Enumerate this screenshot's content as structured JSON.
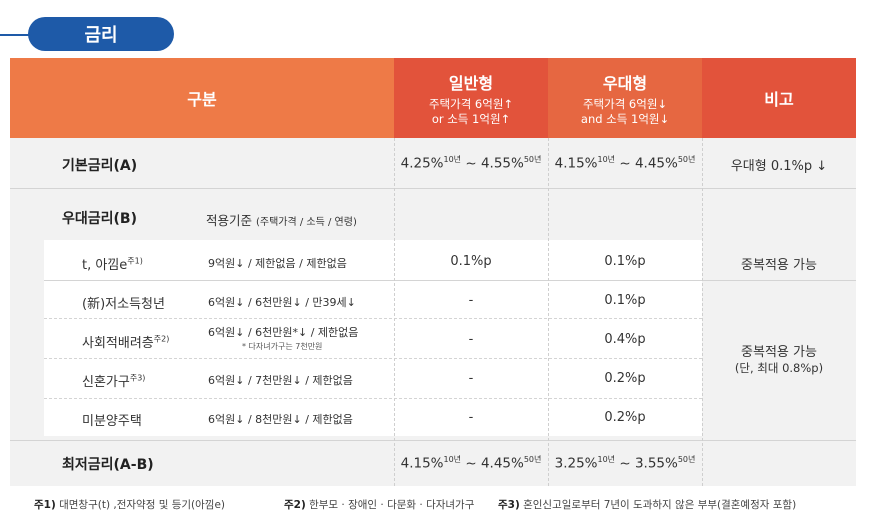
{
  "section_title": "금리",
  "headers": {
    "category": "구분",
    "general": {
      "title": "일반형",
      "line1": "주택가격 6억원↑",
      "line2": "or 소득 1억원↑"
    },
    "preferential": {
      "title": "우대형",
      "line1": "주택가격 6억원↓",
      "line2": "and 소득 1억원↓"
    },
    "remarks": "비고"
  },
  "base_rate": {
    "label": "기본금리(A)",
    "general": {
      "from": "4.25%",
      "from_term": "10년",
      "sep": " ~ ",
      "to": "4.55%",
      "to_term": "50년"
    },
    "preferential": {
      "from": "4.15%",
      "from_term": "10년",
      "sep": " ~ ",
      "to": "4.45%",
      "to_term": "50년"
    },
    "remark": "우대형 0.1%p ↓"
  },
  "discount": {
    "label": "우대금리(B)",
    "criteria_label": "적용기준",
    "criteria_sub": "(주택가격 / 소득 / 연령)",
    "rows": [
      {
        "name": "t, 아낌e",
        "note": "주1)",
        "criteria": "9억원↓ / 제한없음 / 제한없음",
        "criteria2": "",
        "general": "0.1%p",
        "preferential": "0.1%p"
      },
      {
        "name": "(新)저소득청년",
        "note": "",
        "criteria": "6억원↓ / 6천만원↓ / 만39세↓",
        "criteria2": "",
        "general": "-",
        "preferential": "0.1%p"
      },
      {
        "name": "사회적배려층",
        "note": "주2)",
        "criteria": "6억원↓ / 6천만원*↓ / 제한없음",
        "criteria2": "* 다자녀가구는 7천만원",
        "general": "-",
        "preferential": "0.4%p"
      },
      {
        "name": "신혼가구",
        "note": "주3)",
        "criteria": "6억원↓ / 7천만원↓ / 제한없음",
        "criteria2": "",
        "general": "-",
        "preferential": "0.2%p"
      },
      {
        "name": "미분양주택",
        "note": "",
        "criteria": "6억원↓ / 8천만원↓ / 제한없음",
        "criteria2": "",
        "general": "-",
        "preferential": "0.2%p"
      }
    ],
    "remark_dup": "중복적용 가능",
    "remark_dup2": "중복적용 가능",
    "remark_dup2_sub": "(단, 최대 0.8%p)"
  },
  "min_rate": {
    "label": "최저금리(A-B)",
    "general": {
      "from": "4.15%",
      "from_term": "10년",
      "sep": " ~ ",
      "to": "4.45%",
      "to_term": "50년"
    },
    "preferential": {
      "from": "3.25%",
      "from_term": "10년",
      "sep": " ~ ",
      "to": "3.55%",
      "to_term": "50년"
    }
  },
  "footnotes": [
    {
      "mark": "주1)",
      "text": " 대면창구(t) ,전자약정 및 등기(아낌e)"
    },
    {
      "mark": "주2)",
      "text": " 한부모 · 장애인 · 다문화 · 다자녀가구"
    },
    {
      "mark": "주3)",
      "text": " 혼인신고일로부터 7년이 도과하지 않은 부부(결혼예정자 포함)"
    }
  ]
}
